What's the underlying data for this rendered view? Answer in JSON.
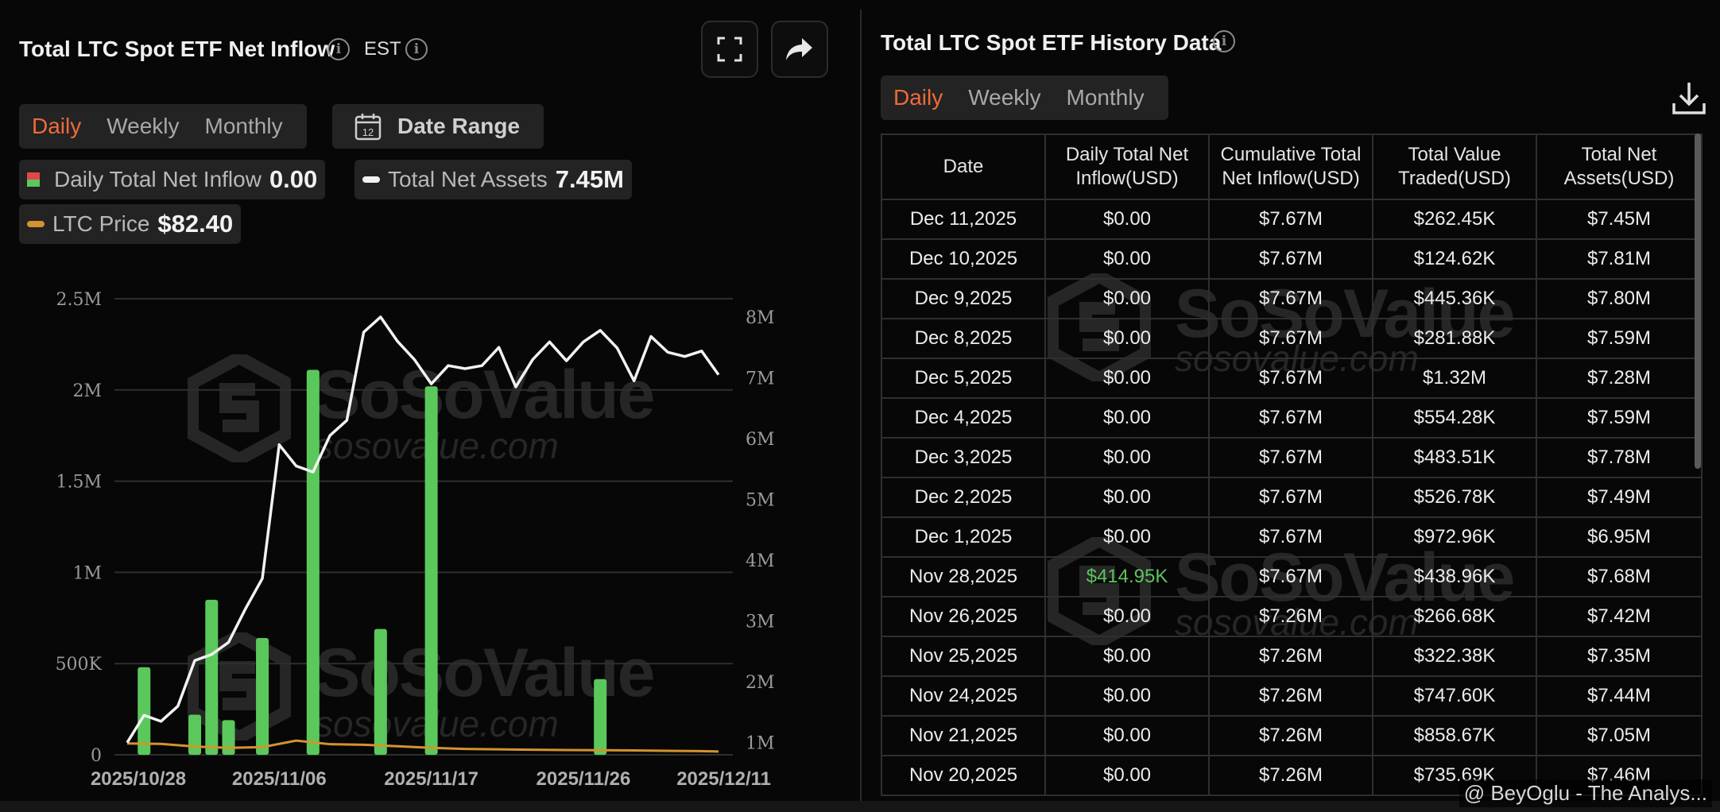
{
  "left_panel": {
    "title": "Total LTC Spot ETF Net Inflow",
    "timezone": "EST",
    "tabs": [
      "Daily",
      "Weekly",
      "Monthly"
    ],
    "active_tab": "Daily",
    "date_range_label": "Date Range",
    "calendar_day": "12",
    "legend": {
      "inflow_name": "Daily Total Net Inflow",
      "inflow_value": "0.00",
      "assets_name": "Total Net Assets",
      "assets_value": "7.45M",
      "price_name": "LTC Price",
      "price_value": "$82.40"
    },
    "watermark": {
      "brand": "SoSoValue",
      "url": "sosovalue.com"
    }
  },
  "chart_data": {
    "type": "bar",
    "x_tick_labels": [
      "2025/10/28",
      "2025/11/06",
      "2025/11/17",
      "2025/11/26",
      "2025/12/11"
    ],
    "y_left_ticks": [
      "0",
      "500K",
      "1M",
      "1.5M",
      "2M",
      "2.5M"
    ],
    "y_left_range": [
      0,
      2500000
    ],
    "y_right_ticks": [
      "1M",
      "2M",
      "3M",
      "4M",
      "5M",
      "6M",
      "7M",
      "8M"
    ],
    "y_right_range": [
      0.8,
      8.3
    ],
    "colors": {
      "inflow": "#5bc85b",
      "assets": "#f2f2f2",
      "price": "#d4932e",
      "grid": "#2e2e2e"
    },
    "series": [
      {
        "name": "Daily Total Net Inflow",
        "kind": "bar",
        "axis": "left",
        "x": [
          1,
          4,
          5,
          6,
          8,
          11,
          15,
          18,
          28
        ],
        "values": [
          480000,
          220000,
          850000,
          190000,
          640000,
          2110000,
          690000,
          2020000,
          414950
        ]
      },
      {
        "name": "Total Net Assets",
        "kind": "line",
        "axis": "right",
        "x": [
          0,
          1,
          2,
          3,
          4,
          5,
          6,
          7,
          8,
          9,
          10,
          11,
          12,
          13,
          14,
          15,
          16,
          17,
          18,
          19,
          20,
          21,
          22,
          23,
          24,
          25,
          26,
          27,
          28,
          29,
          30,
          31,
          32,
          33,
          34,
          35
        ],
        "values": [
          1.0,
          1.45,
          1.35,
          1.6,
          2.35,
          2.45,
          2.65,
          3.2,
          3.7,
          5.9,
          5.55,
          5.45,
          6.05,
          6.3,
          7.75,
          8.0,
          7.6,
          7.3,
          6.9,
          7.2,
          7.15,
          7.2,
          7.5,
          6.85,
          7.3,
          7.59,
          7.28,
          7.59,
          7.78,
          7.49,
          6.95,
          7.68,
          7.42,
          7.35,
          7.44,
          7.05
        ]
      },
      {
        "name": "LTC Price",
        "kind": "line",
        "axis": "left",
        "x": [
          0,
          2,
          4,
          6,
          8,
          10,
          12,
          14,
          16,
          18,
          20,
          22,
          24,
          26,
          28,
          30,
          32,
          34,
          35
        ],
        "values": [
          62000,
          60000,
          45000,
          38000,
          42000,
          78000,
          58000,
          55000,
          47000,
          38000,
          32000,
          30000,
          28000,
          26000,
          25000,
          24000,
          22000,
          20000,
          18000
        ]
      }
    ]
  },
  "right_panel": {
    "title": "Total LTC Spot ETF History Data",
    "tabs": [
      "Daily",
      "Weekly",
      "Monthly"
    ],
    "active_tab": "Daily",
    "columns": [
      "Date",
      "Daily Total Net Inflow(USD)",
      "Cumulative Total Net Inflow(USD)",
      "Total Value Traded(USD)",
      "Total Net Assets(USD)"
    ],
    "rows": [
      [
        "Dec 11,2025",
        "$0.00",
        "$7.67M",
        "$262.45K",
        "$7.45M"
      ],
      [
        "Dec 10,2025",
        "$0.00",
        "$7.67M",
        "$124.62K",
        "$7.81M"
      ],
      [
        "Dec 9,2025",
        "$0.00",
        "$7.67M",
        "$445.36K",
        "$7.80M"
      ],
      [
        "Dec 8,2025",
        "$0.00",
        "$7.67M",
        "$281.88K",
        "$7.59M"
      ],
      [
        "Dec 5,2025",
        "$0.00",
        "$7.67M",
        "$1.32M",
        "$7.28M"
      ],
      [
        "Dec 4,2025",
        "$0.00",
        "$7.67M",
        "$554.28K",
        "$7.59M"
      ],
      [
        "Dec 3,2025",
        "$0.00",
        "$7.67M",
        "$483.51K",
        "$7.78M"
      ],
      [
        "Dec 2,2025",
        "$0.00",
        "$7.67M",
        "$526.78K",
        "$7.49M"
      ],
      [
        "Dec 1,2025",
        "$0.00",
        "$7.67M",
        "$972.96K",
        "$6.95M"
      ],
      [
        "Nov 28,2025",
        "$414.95K",
        "$7.67M",
        "$438.96K",
        "$7.68M"
      ],
      [
        "Nov 26,2025",
        "$0.00",
        "$7.26M",
        "$266.68K",
        "$7.42M"
      ],
      [
        "Nov 25,2025",
        "$0.00",
        "$7.26M",
        "$322.38K",
        "$7.35M"
      ],
      [
        "Nov 24,2025",
        "$0.00",
        "$7.26M",
        "$747.60K",
        "$7.44M"
      ],
      [
        "Nov 21,2025",
        "$0.00",
        "$7.26M",
        "$858.67K",
        "$7.05M"
      ],
      [
        "Nov 20,2025",
        "$0.00",
        "$7.26M",
        "$735.69K",
        "$7.46M"
      ]
    ],
    "positive_color": "#5cc45c"
  },
  "credit": "@ BeyOglu - The Analys..."
}
